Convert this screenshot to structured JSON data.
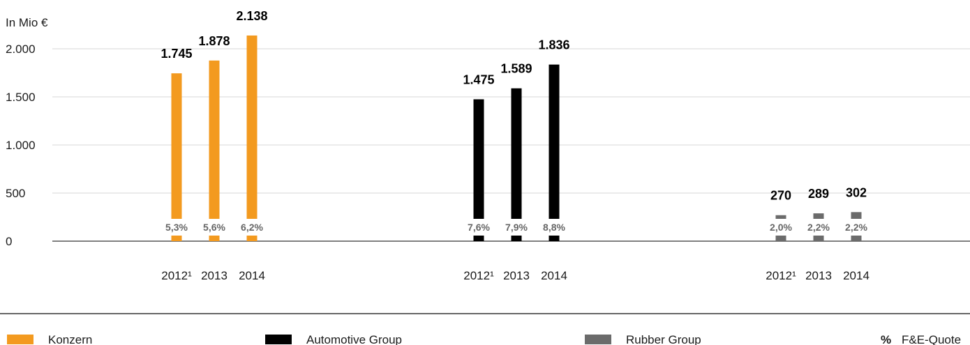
{
  "chart_data": {
    "type": "bar",
    "unit_label": "In Mio €",
    "ylim": [
      0,
      2000
    ],
    "yticks": [
      {
        "value": 0,
        "label": "0"
      },
      {
        "value": 500,
        "label": "500"
      },
      {
        "value": 1000,
        "label": "1.000"
      },
      {
        "value": 1500,
        "label": "1.500"
      },
      {
        "value": 2000,
        "label": "2.000"
      }
    ],
    "grid": true,
    "groups": [
      {
        "name": "Konzern",
        "color": "#f39a1f",
        "bars": [
          {
            "year": "2012¹",
            "value": 1745,
            "value_label": "1.745",
            "quote": "5,3%"
          },
          {
            "year": "2013",
            "value": 1878,
            "value_label": "1.878",
            "quote": "5,6%"
          },
          {
            "year": "2014",
            "value": 2138,
            "value_label": "2.138",
            "quote": "6,2%"
          }
        ]
      },
      {
        "name": "Automotive Group",
        "color": "#000000",
        "bars": [
          {
            "year": "2012¹",
            "value": 1475,
            "value_label": "1.475",
            "quote": "7,6%"
          },
          {
            "year": "2013",
            "value": 1589,
            "value_label": "1.589",
            "quote": "7,9%"
          },
          {
            "year": "2014",
            "value": 1836,
            "value_label": "1.836",
            "quote": "8,8%"
          }
        ]
      },
      {
        "name": "Rubber Group",
        "color": "#6b6b6b",
        "bars": [
          {
            "year": "2012¹",
            "value": 270,
            "value_label": "270",
            "quote": "2,0%"
          },
          {
            "year": "2013",
            "value": 289,
            "value_label": "289",
            "quote": "2,2%"
          },
          {
            "year": "2014",
            "value": 302,
            "value_label": "302",
            "quote": "2,2%"
          }
        ]
      }
    ],
    "legend": {
      "placement": "bottom",
      "items": [
        {
          "label": "Konzern",
          "color": "#f39a1f"
        },
        {
          "label": "Automotive Group",
          "color": "#000000"
        },
        {
          "label": "Rubber Group",
          "color": "#6b6b6b"
        }
      ],
      "quote_symbol": "%",
      "quote_label": "F&E-Quote"
    }
  }
}
